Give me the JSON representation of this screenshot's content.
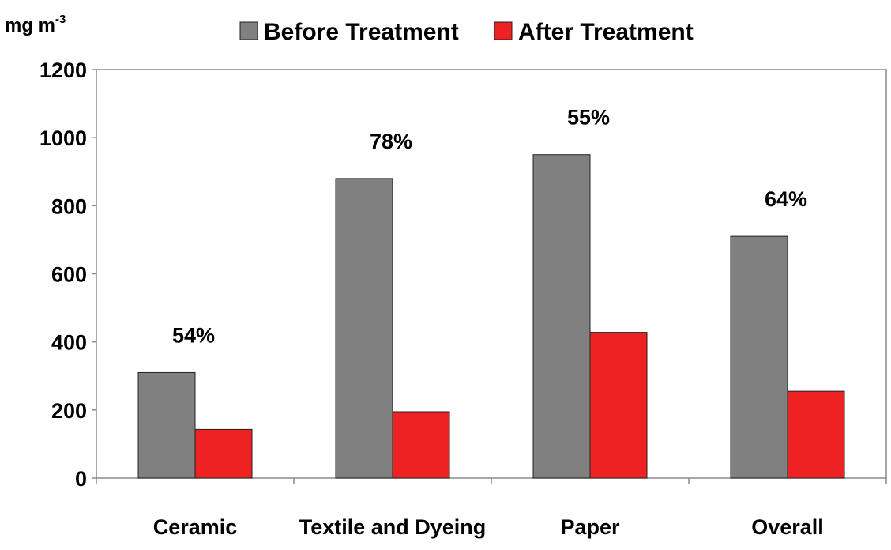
{
  "chart_data": {
    "type": "bar",
    "categories": [
      "Ceramic",
      "Textile and Dyeing",
      "Paper",
      "Overall"
    ],
    "series": [
      {
        "name": "Before Treatment",
        "values": [
          310,
          880,
          950,
          710
        ],
        "color": "#808080"
      },
      {
        "name": "After Treatment",
        "values": [
          143,
          195,
          428,
          255
        ],
        "color": "#ee2222"
      }
    ],
    "annotations": [
      "54%",
      "78%",
      "55%",
      "64%"
    ],
    "ylabel": "mg m",
    "ylabel_superscript": "-3",
    "ylim": [
      0,
      1200
    ],
    "yticks": [
      0,
      200,
      400,
      600,
      800,
      1000,
      1200
    ],
    "legend_position": "top",
    "grid": false
  }
}
